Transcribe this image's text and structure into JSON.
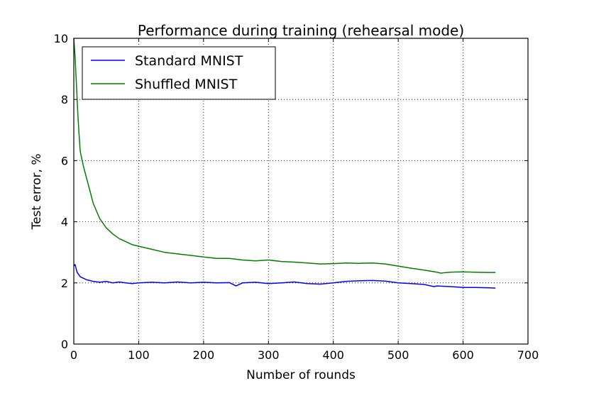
{
  "chart_data": {
    "type": "line",
    "title": "Performance during training (rehearsal mode)",
    "xlabel": "Number of rounds",
    "ylabel": "Test error, %",
    "xlim": [
      0,
      700
    ],
    "ylim": [
      0,
      10
    ],
    "xticks": [
      "0",
      "100",
      "200",
      "300",
      "400",
      "500",
      "600",
      "700"
    ],
    "yticks": [
      "0",
      "2",
      "4",
      "6",
      "8",
      "10"
    ],
    "grid": true,
    "legend_position": "top-left",
    "series": [
      {
        "name": "Standard MNIST",
        "color": "#0000ff",
        "x": [
          0,
          2,
          5,
          10,
          15,
          20,
          30,
          40,
          50,
          60,
          70,
          80,
          90,
          100,
          120,
          140,
          160,
          180,
          200,
          220,
          240,
          250,
          260,
          280,
          300,
          320,
          340,
          360,
          380,
          400,
          420,
          440,
          460,
          480,
          500,
          520,
          540,
          555,
          560,
          580,
          600,
          620,
          640,
          650
        ],
        "values": [
          2.55,
          2.6,
          2.35,
          2.2,
          2.15,
          2.1,
          2.05,
          2.02,
          2.05,
          2.0,
          2.03,
          2.0,
          1.98,
          2.0,
          2.02,
          2.0,
          2.03,
          2.0,
          2.02,
          2.0,
          2.01,
          1.9,
          2.0,
          2.02,
          1.98,
          2.0,
          2.03,
          1.98,
          1.96,
          2.0,
          2.05,
          2.07,
          2.08,
          2.06,
          2.0,
          1.98,
          1.95,
          1.88,
          1.9,
          1.88,
          1.85,
          1.85,
          1.84,
          1.83
        ]
      },
      {
        "name": "Shuffled MNIST",
        "color": "#008000",
        "x": [
          0,
          2,
          4,
          6,
          8,
          10,
          15,
          20,
          25,
          30,
          35,
          40,
          50,
          60,
          70,
          80,
          90,
          100,
          120,
          140,
          160,
          180,
          200,
          220,
          240,
          260,
          280,
          300,
          320,
          340,
          360,
          380,
          400,
          420,
          440,
          460,
          480,
          500,
          520,
          540,
          560,
          565,
          580,
          600,
          620,
          640,
          650
        ],
        "values": [
          10.0,
          9.4,
          8.5,
          7.6,
          6.9,
          6.3,
          5.8,
          5.4,
          5.0,
          4.6,
          4.35,
          4.1,
          3.8,
          3.6,
          3.45,
          3.35,
          3.25,
          3.2,
          3.1,
          3.0,
          2.95,
          2.9,
          2.85,
          2.8,
          2.8,
          2.75,
          2.72,
          2.75,
          2.7,
          2.68,
          2.65,
          2.62,
          2.63,
          2.65,
          2.64,
          2.65,
          2.62,
          2.55,
          2.48,
          2.42,
          2.35,
          2.32,
          2.35,
          2.36,
          2.35,
          2.34,
          2.34
        ]
      }
    ]
  }
}
